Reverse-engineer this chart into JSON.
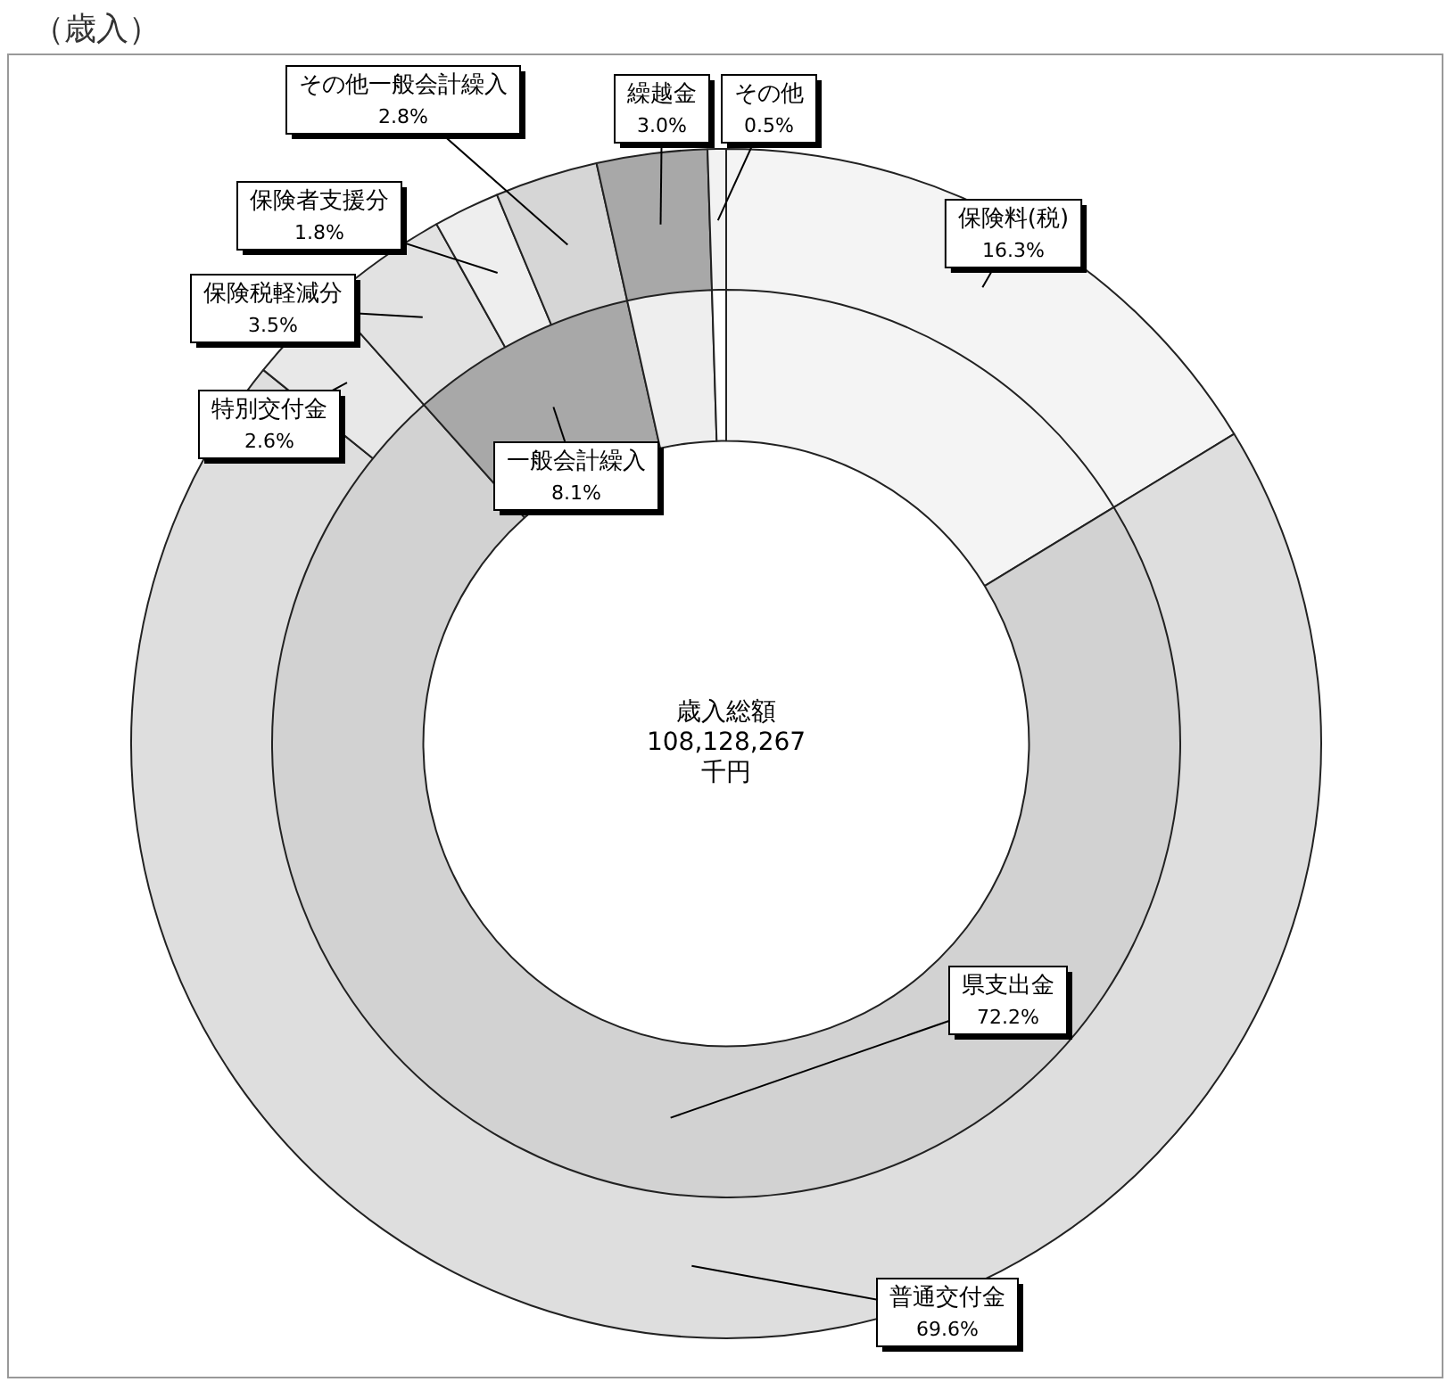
{
  "chart_data": [
    {
      "type": "donut",
      "title": "（歳入）",
      "legend": false,
      "categories": [
        "保険料(税)",
        "普通交付金",
        "特別交付金",
        "保険税軽減分",
        "保険者支援分",
        "その他一般会計繰入",
        "繰越金",
        "その他"
      ],
      "values": [
        16.3,
        69.6,
        2.6,
        3.5,
        1.8,
        2.8,
        3.0,
        0.5
      ],
      "colors": [
        "#f4f4f4",
        "#dedede",
        "#e8e8e8",
        "#e2e2e2",
        "#eeeeee",
        "#d6d6d6",
        "#a8a8a8",
        "#f2f2f2"
      ],
      "value_labels": [
        "16.3%",
        "69.6%",
        "2.6%",
        "3.5%",
        "1.8%",
        "2.8%",
        "3.0%",
        "0.5%"
      ]
    },
    {
      "type": "donut",
      "legend": false,
      "annotations": [
        "歳入総額",
        "108,128,267",
        "千円"
      ],
      "categories": [
        null,
        "県支出金",
        "一般会計繰入",
        null,
        null
      ],
      "values": [
        16.3,
        72.2,
        8.1,
        3.0,
        0.5
      ],
      "colors": [
        "#f4f4f4",
        "#d2d2d2",
        "#a8a8a8",
        "#eeeeee",
        "#ffffff"
      ],
      "value_labels": [
        null,
        "72.2%",
        "8.1%",
        null,
        null
      ]
    }
  ]
}
